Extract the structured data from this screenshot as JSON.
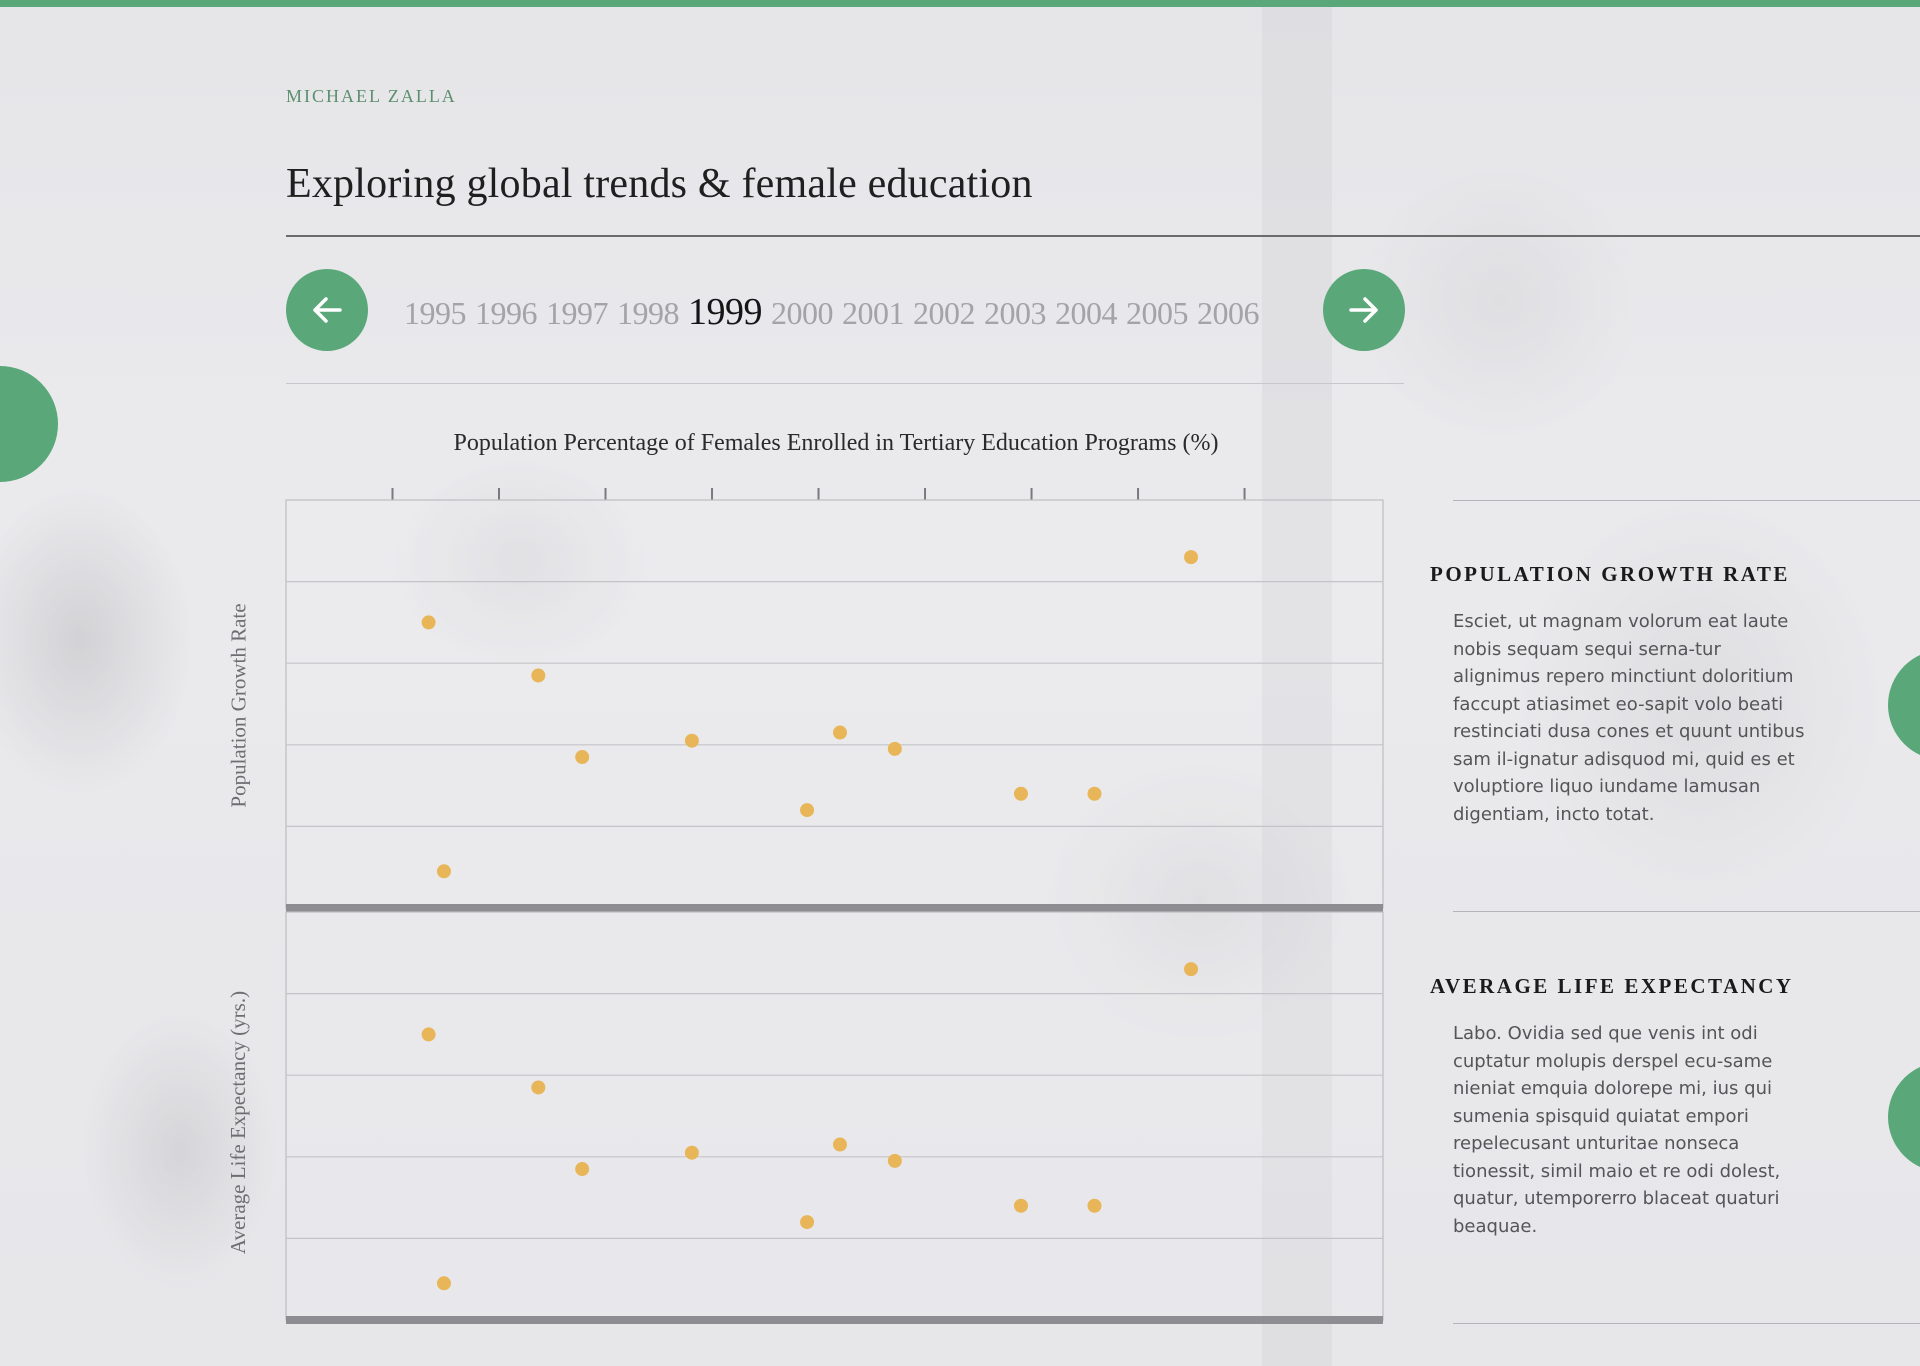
{
  "header": {
    "author": "MICHAEL ZALLA",
    "title": "Exploring global trends & female education"
  },
  "year_nav": {
    "prev_icon": "arrow-left-icon",
    "next_icon": "arrow-right-icon",
    "years": [
      "1995",
      "1996",
      "1997",
      "1998",
      "1999",
      "2000",
      "2001",
      "2002",
      "2003",
      "2004",
      "2005",
      "2006"
    ],
    "selected": "1999"
  },
  "colors": {
    "accent": "#5aa77a",
    "point": "#e8b659",
    "grid": "#c4c4c8",
    "baseline": "#8e8e92"
  },
  "chart_data": [
    {
      "type": "scatter",
      "title": "Population Percentage of Females Enrolled in Tertiary Education Programs (%)",
      "xlabel": "",
      "ylabel": "Population Growth Rate",
      "xlim": [
        0,
        100
      ],
      "ylim": [
        0,
        5
      ],
      "x_ticks": 9,
      "grid": true,
      "x": [
        13,
        14.4,
        23,
        27,
        37,
        47.5,
        50.5,
        55.5,
        67,
        73.7,
        82.5
      ],
      "y": [
        3.5,
        0.45,
        2.85,
        1.85,
        2.05,
        1.2,
        2.15,
        1.95,
        1.4,
        1.4,
        4.3
      ]
    },
    {
      "type": "scatter",
      "title": "",
      "xlabel": "",
      "ylabel": "Average Life Expectancy (yrs.)",
      "xlim": [
        0,
        100
      ],
      "ylim": [
        0,
        5
      ],
      "grid": true,
      "x": [
        13,
        14.4,
        23,
        27,
        37,
        47.5,
        50.5,
        55.5,
        67,
        73.7,
        82.5
      ],
      "y": [
        3.5,
        0.45,
        2.85,
        1.85,
        2.05,
        1.2,
        2.15,
        1.95,
        1.4,
        1.4,
        4.3
      ]
    }
  ],
  "panels": [
    {
      "heading": "POPULATION GROWTH RATE",
      "body": "Esciet, ut magnam volorum eat laute nobis sequam sequi serna-tur alignimus repero minctiunt doloritium faccupt atiasimet eo-sapit volo beati restinciati dusa cones et quunt untibus sam il-ignatur adisquod mi, quid es et voluptiore liquo iundame lamusan digentiam, incto totat."
    },
    {
      "heading": "AVERAGE LIFE EXPECTANCY",
      "body": "Labo. Ovidia sed que venis int odi cuptatur molupis derspel ecu-same nieniat emquia dolorepe mi, ius qui sumenia spisquid quiatat empori repelecusant unturitae nonseca tionessit, simil maio et re odi dolest, quatur, utemporerro blaceat quaturi beaquae."
    }
  ]
}
